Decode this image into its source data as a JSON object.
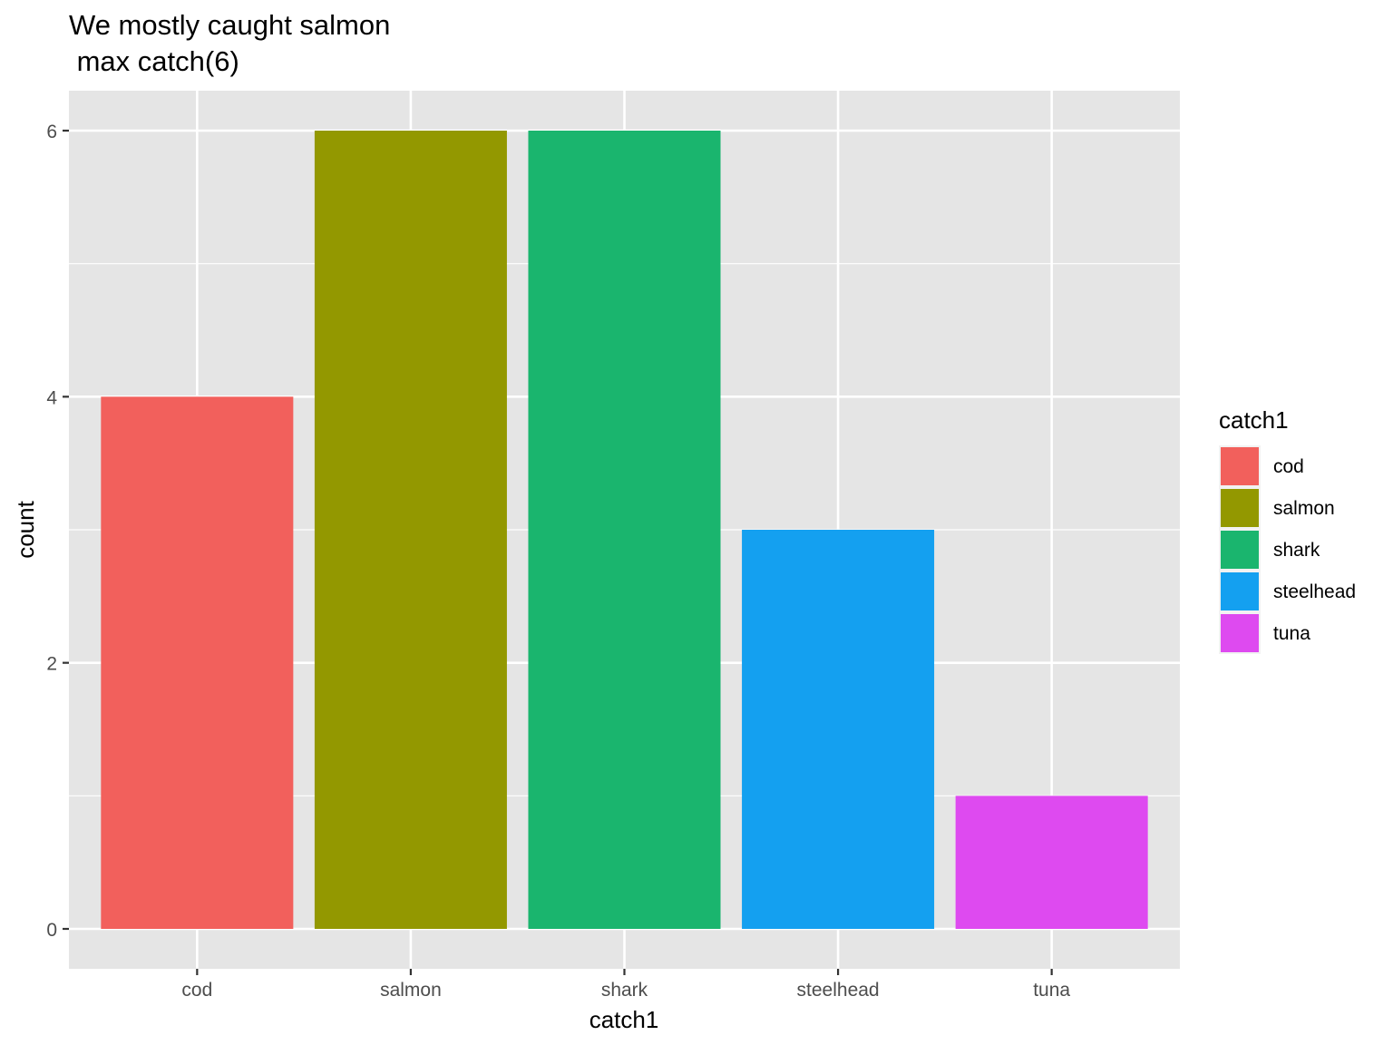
{
  "chart_data": {
    "type": "bar",
    "title_lines": [
      "We mostly caught salmon",
      " max catch(6)"
    ],
    "xlabel": "catch1",
    "ylabel": "count",
    "categories": [
      "cod",
      "salmon",
      "shark",
      "steelhead",
      "tuna"
    ],
    "values": [
      4,
      6,
      6,
      3,
      1
    ],
    "colors": [
      "#F2605C",
      "#939800",
      "#1AB56E",
      "#14A0F0",
      "#DE4AF0"
    ],
    "ylim": [
      -0.3,
      6.3
    ],
    "y_ticks": [
      0,
      2,
      4,
      6
    ],
    "y_ticks_minor": [
      1,
      3,
      5
    ],
    "grid": true,
    "panel_background": "#E5E5E5",
    "grid_color": "#FFFFFF",
    "legend": {
      "title": "catch1",
      "placement": "right",
      "entries": [
        "cod",
        "salmon",
        "shark",
        "steelhead",
        "tuna"
      ]
    }
  }
}
